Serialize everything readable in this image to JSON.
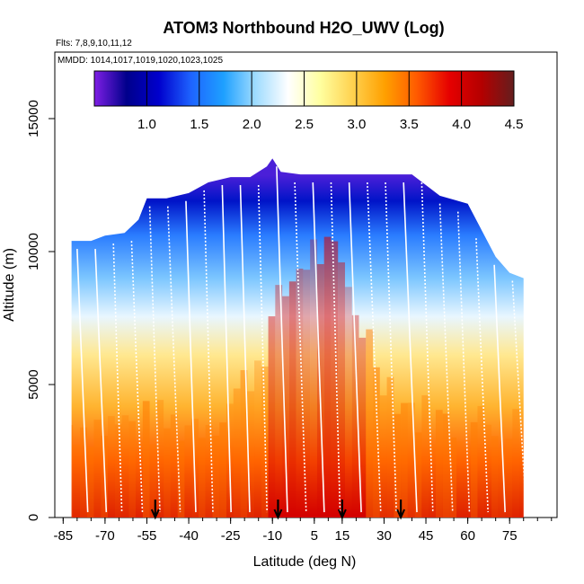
{
  "chart_data": {
    "type": "heatmap",
    "title": "ATOM3 Northbound H2O_UWV (Log)",
    "flights_note": "Flts: 7,8,9,10,11,12",
    "date_note": "MMDD: 1014,1017,1019,1020,1023,1025",
    "xlabel": "Latitude (deg N)",
    "ylabel": "Altitude (m)",
    "xlim": [
      -88,
      92
    ],
    "ylim": [
      0,
      17500
    ],
    "x_ticks": [
      -85,
      -70,
      -55,
      -40,
      -25,
      -10,
      5,
      15,
      30,
      45,
      60,
      75
    ],
    "y_ticks": [
      0,
      5000,
      10000,
      15000
    ],
    "colorbar": {
      "range": [
        0.5,
        4.5
      ],
      "ticks": [
        "1.0",
        "1.5",
        "2.0",
        "2.5",
        "3.0",
        "3.5",
        "4.0",
        "4.5"
      ],
      "tick_values": [
        1.0,
        1.5,
        2.0,
        2.5,
        3.0,
        3.5,
        4.0,
        4.5
      ],
      "colors": [
        "#7f1fe5",
        "#00008b",
        "#0000cd",
        "#1e64ff",
        "#1ea0ff",
        "#a0dcff",
        "#ffffff",
        "#ffffa0",
        "#ffd250",
        "#ffa000",
        "#ff5a00",
        "#e60000",
        "#b40000",
        "#641e1e"
      ]
    },
    "top_envelope": [
      [
        -82,
        10400
      ],
      [
        -75,
        10400
      ],
      [
        -70,
        10600
      ],
      [
        -63,
        10700
      ],
      [
        -58,
        11200
      ],
      [
        -55,
        12000
      ],
      [
        -48,
        12000
      ],
      [
        -40,
        12200
      ],
      [
        -33,
        12600
      ],
      [
        -25,
        12800
      ],
      [
        -18,
        12800
      ],
      [
        -12,
        13200
      ],
      [
        -10,
        13500
      ],
      [
        -7,
        13000
      ],
      [
        0,
        12900
      ],
      [
        10,
        12900
      ],
      [
        20,
        12900
      ],
      [
        30,
        12900
      ],
      [
        40,
        12900
      ],
      [
        50,
        12100
      ],
      [
        60,
        11800
      ],
      [
        65,
        10800
      ],
      [
        70,
        9800
      ],
      [
        75,
        9200
      ],
      [
        80,
        9000
      ]
    ],
    "surface_markers": [
      -52,
      -8,
      15,
      36
    ]
  }
}
